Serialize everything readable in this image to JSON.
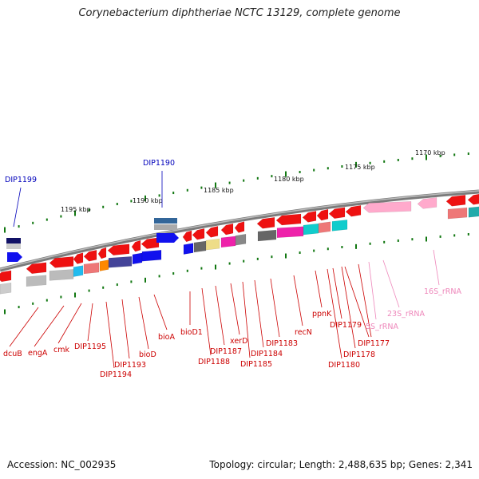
{
  "title": "Corynebacterium diphtheriae NCTC 13129, complete genome",
  "footer": {
    "accession": "Accession: NC_002935",
    "summary": "Topology: circular; Length: 2,488,635 bp; Genes: 2,341"
  },
  "colors": {
    "gene_label": "#cc0000",
    "rna_label": "#ee88bb",
    "upper_label": "#0000bb",
    "tick": "#117711",
    "backbone": "#777777"
  },
  "kbp_labels": [
    "1195 kbp",
    "1190 kbp",
    "1185 kbp",
    "1180 kbp",
    "1175 kbp",
    "1170 kbp"
  ],
  "lower_labels": [
    "dcuB",
    "engA",
    "cmk",
    "DIP1195",
    "DIP1194",
    "DIP1193",
    "bioD",
    "bioA",
    "bioD1",
    "DIP1188",
    "DIP1187",
    "xerD",
    "DIP1185",
    "DIP1184",
    "DIP1183",
    "recN",
    "ppnK",
    "DIP1180",
    "DIP1179",
    "DIP1178",
    "DIP1177",
    "5S_rRNA",
    "23S_rRNA",
    "16S_rRNA"
  ],
  "upper_labels": [
    "DIP1199",
    "DIP1190"
  ]
}
